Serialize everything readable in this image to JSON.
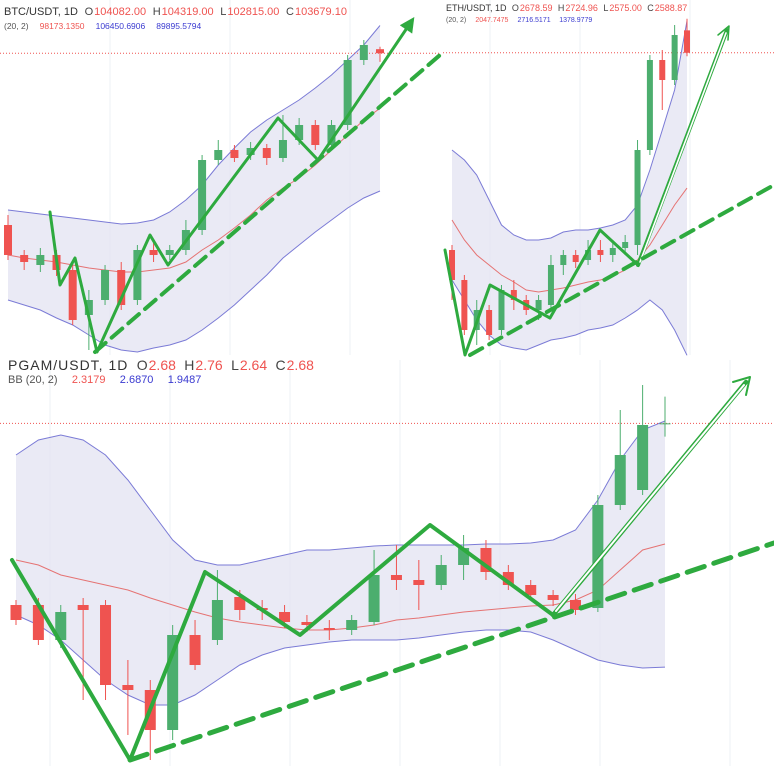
{
  "ohlc_letters": [
    "O",
    "H",
    "L",
    "C"
  ],
  "chart_data": [
    {
      "type": "candlestick",
      "title": "BTC/USDT, 1D",
      "ohlc": [
        "104082.00",
        "104319.00",
        "102815.00",
        "103679.10"
      ],
      "indicator": "(20, 2)",
      "indicator_values": [
        "98173.1350",
        "106450.6906",
        "89895.5794"
      ],
      "open": [
        86500,
        83500,
        82500,
        83500,
        82000,
        77500,
        79000,
        82000,
        79000,
        84000,
        83500,
        84000,
        86000,
        93000,
        94000,
        93500,
        94200,
        93200,
        95000,
        96500,
        94500,
        96500,
        103000,
        104082
      ],
      "high": [
        87500,
        84000,
        84200,
        84000,
        82500,
        80000,
        82500,
        82800,
        84500,
        84800,
        84500,
        87000,
        93500,
        95000,
        94500,
        94800,
        94600,
        97500,
        97200,
        97000,
        97000,
        103500,
        105000,
        104319
      ],
      "low": [
        83000,
        82000,
        81800,
        81400,
        76500,
        74000,
        78500,
        78000,
        78500,
        82800,
        83000,
        83500,
        85500,
        92500,
        92800,
        93000,
        92500,
        92800,
        94500,
        94000,
        94000,
        96000,
        102500,
        102815
      ],
      "close": [
        83500,
        82800,
        83500,
        82000,
        77000,
        79000,
        82000,
        78500,
        84000,
        83500,
        84000,
        86000,
        93000,
        94000,
        93200,
        94200,
        93200,
        95000,
        96500,
        94500,
        96500,
        103000,
        104500,
        103679.1
      ],
      "bb_upper": [
        88000,
        87800,
        87600,
        87400,
        87200,
        87000,
        86800,
        86600,
        86700,
        87000,
        87800,
        89000,
        90500,
        92500,
        94200,
        95800,
        97000,
        98000,
        99000,
        100200,
        101500,
        103000,
        104500,
        106450.6906
      ],
      "bb_middle": [
        83500,
        83200,
        83000,
        82800,
        82500,
        82200,
        82000,
        81800,
        81800,
        82000,
        82200,
        82800,
        84000,
        85000,
        86200,
        87500,
        89000,
        90200,
        91200,
        92500,
        94000,
        95500,
        97000,
        98173.135
      ],
      "bb_lower": [
        79000,
        78500,
        78000,
        77200,
        76500,
        75500,
        74500,
        74000,
        73800,
        74200,
        74500,
        75000,
        76000,
        77200,
        78500,
        80000,
        81500,
        83200,
        84500,
        85800,
        87000,
        88200,
        89200,
        89895.5794
      ],
      "ylim": [
        73500,
        109000
      ],
      "up_color": "#4cae6e",
      "down_color": "#ef5350",
      "band_color": "#7b7bd6",
      "middle_color": "#e57373",
      "band_fill": "#e3e3f2"
    },
    {
      "type": "candlestick",
      "title": "ETH/USDT, 1D",
      "ohlc": [
        "2678.59",
        "2724.96",
        "2575.00",
        "2588.87"
      ],
      "indicator": "(20, 2)",
      "indicator_values": [
        "2047.7475",
        "2716.5171",
        "1378.9779"
      ],
      "open": [
        1800,
        1680,
        1480,
        1560,
        1480,
        1640,
        1600,
        1560,
        1580,
        1740,
        1780,
        1760,
        1800,
        1780,
        1808,
        1820,
        2200,
        2560,
        2480,
        2678.59
      ],
      "high": [
        1820,
        1700,
        1600,
        1580,
        1660,
        1680,
        1620,
        1620,
        1780,
        1800,
        1800,
        1840,
        1840,
        1840,
        1860,
        2240,
        2580,
        2600,
        2700,
        2724.96
      ],
      "low": [
        1600,
        1460,
        1420,
        1440,
        1460,
        1560,
        1540,
        1520,
        1560,
        1700,
        1728,
        1740,
        1752,
        1752,
        1780,
        1780,
        2180,
        2360,
        2460,
        2575
      ],
      "close": [
        1680,
        1480,
        1560,
        1460,
        1640,
        1600,
        1560,
        1600,
        1740,
        1780,
        1752,
        1800,
        1780,
        1808,
        1832,
        2200,
        2560,
        2480,
        2660,
        2588.87
      ],
      "bb_upper": [
        2200,
        2160,
        2100,
        2000,
        1900,
        1860,
        1840,
        1840,
        1848,
        1872,
        1880,
        1880,
        1888,
        1900,
        1920,
        1980,
        2120,
        2280,
        2440,
        2716.5171
      ],
      "bb_middle": [
        1920,
        1840,
        1780,
        1740,
        1700,
        1672,
        1640,
        1632,
        1640,
        1648,
        1660,
        1672,
        1680,
        1696,
        1720,
        1760,
        1820,
        1900,
        1980,
        2047.7475
      ],
      "bb_lower": [
        1680,
        1600,
        1520,
        1460,
        1420,
        1408,
        1400,
        1420,
        1440,
        1448,
        1460,
        1480,
        1488,
        1500,
        1528,
        1560,
        1600,
        1560,
        1480,
        1378.9779
      ],
      "ylim": [
        1380,
        2800
      ],
      "up_color": "#4cae6e",
      "down_color": "#ef5350",
      "band_color": "#7b7bd6",
      "middle_color": "#e57373",
      "band_fill": "#e3e3f2"
    },
    {
      "type": "candlestick",
      "title": "PGAM/USDT, 1D",
      "ohlc": [
        "2.68",
        "2.76",
        "2.64",
        "2.68"
      ],
      "indicator": "BB (20, 2)",
      "indicator_values": [
        "2.3179",
        "2.6870",
        "1.9487"
      ],
      "open": [
        2.135,
        2.135,
        2.03,
        2.135,
        2.135,
        1.895,
        1.88,
        1.76,
        2.045,
        2.03,
        2.159,
        2.126,
        2.114,
        2.084,
        2.066,
        2.06,
        2.084,
        2.225,
        2.21,
        2.195,
        2.255,
        2.306,
        2.234,
        2.195,
        2.165,
        2.15,
        2.126,
        2.435,
        2.48,
        2.68
      ],
      "high": [
        2.15,
        2.156,
        2.135,
        2.156,
        2.15,
        1.97,
        1.91,
        2.075,
        2.09,
        2.24,
        2.18,
        2.15,
        2.135,
        2.105,
        2.09,
        2.105,
        2.3,
        2.315,
        2.27,
        2.285,
        2.345,
        2.33,
        2.255,
        2.21,
        2.18,
        2.168,
        2.465,
        2.72,
        2.795,
        2.76
      ],
      "low": [
        2.075,
        2.015,
        2.006,
        1.85,
        1.85,
        1.745,
        1.67,
        1.73,
        1.94,
        2.015,
        2.09,
        2.09,
        2.066,
        2.054,
        2.03,
        2.045,
        2.075,
        2.18,
        2.12,
        2.18,
        2.21,
        2.21,
        2.18,
        2.15,
        2.132,
        2.105,
        2.114,
        2.42,
        2.465,
        2.64
      ],
      "close": [
        2.09,
        2.03,
        2.114,
        2.12,
        1.895,
        1.88,
        1.76,
        2.045,
        1.955,
        2.15,
        2.12,
        2.12,
        2.084,
        2.075,
        2.06,
        2.09,
        2.225,
        2.21,
        2.195,
        2.255,
        2.306,
        2.234,
        2.195,
        2.165,
        2.15,
        2.12,
        2.435,
        2.585,
        2.675,
        2.68
      ],
      "bb_upper": [
        2.585,
        2.63,
        2.645,
        2.63,
        2.585,
        2.51,
        2.42,
        2.33,
        2.27,
        2.255,
        2.255,
        2.27,
        2.285,
        2.3,
        2.3,
        2.306,
        2.312,
        2.315,
        2.315,
        2.315,
        2.315,
        2.318,
        2.318,
        2.321,
        2.33,
        2.36,
        2.45,
        2.57,
        2.66,
        2.687
      ],
      "bb_middle": [
        2.27,
        2.255,
        2.225,
        2.21,
        2.195,
        2.18,
        2.156,
        2.135,
        2.114,
        2.096,
        2.084,
        2.075,
        2.066,
        2.06,
        2.06,
        2.066,
        2.075,
        2.09,
        2.096,
        2.105,
        2.114,
        2.12,
        2.126,
        2.132,
        2.135,
        2.15,
        2.18,
        2.24,
        2.3,
        2.3179
      ],
      "bb_lower": [
        2.105,
        2.075,
        2.03,
        1.97,
        1.91,
        1.865,
        1.835,
        1.835,
        1.865,
        1.91,
        1.955,
        1.985,
        2.006,
        2.015,
        2.024,
        2.03,
        2.03,
        2.03,
        2.036,
        2.045,
        2.054,
        2.06,
        2.06,
        2.054,
        2.03,
        2.0,
        1.97,
        1.955,
        1.946,
        1.9487
      ],
      "ylim": [
        1.652,
        2.864
      ],
      "up_color": "#4cae6e",
      "down_color": "#ef5350",
      "band_color": "#7b7bd6",
      "middle_color": "#e57373",
      "band_fill": "#e3e3f2"
    }
  ]
}
